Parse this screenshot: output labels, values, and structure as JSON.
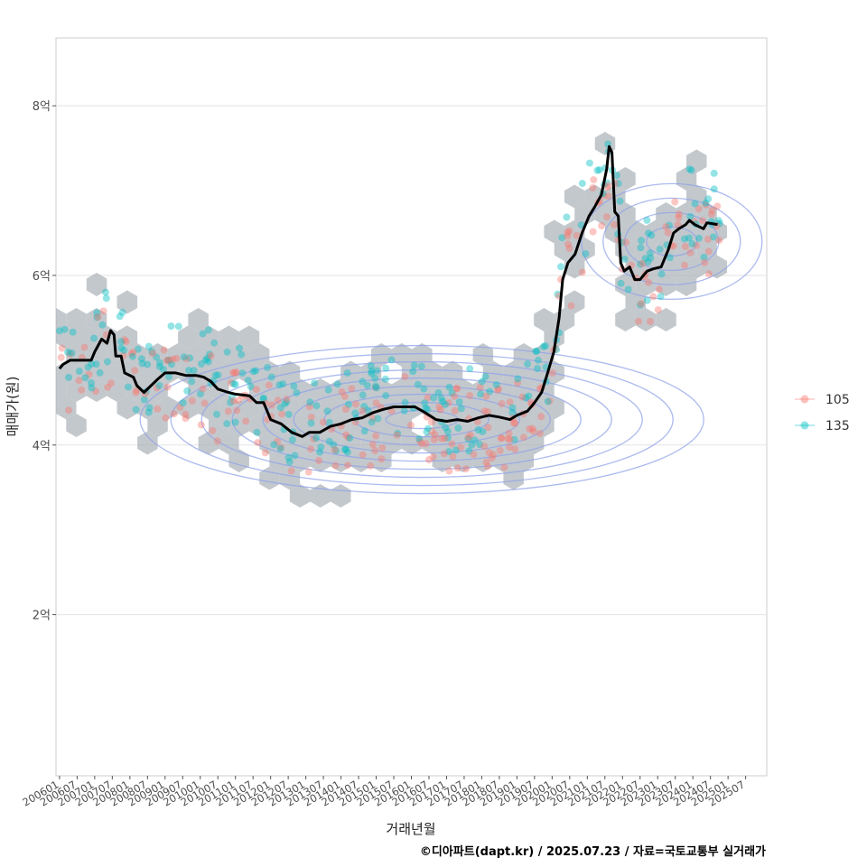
{
  "chart_data": {
    "type": "scatter",
    "xlabel": "거래년월",
    "ylabel": "매매가(원)",
    "caption": "©디아파트(dapt.kr) / 2025.07.23 / 자료=국토교통부 실거래가",
    "ylim": [
      0.1,
      8.8
    ],
    "xlim": [
      2005.9,
      2026.1
    ],
    "y_ticks": [
      {
        "value": 2,
        "label": "2억"
      },
      {
        "value": 4,
        "label": "4억"
      },
      {
        "value": 6,
        "label": "6억"
      },
      {
        "value": 8,
        "label": "8억"
      }
    ],
    "x_ticks": [
      "200601",
      "200607",
      "200701",
      "200707",
      "200801",
      "200807",
      "200901",
      "200907",
      "201001",
      "201007",
      "201101",
      "201107",
      "201201",
      "201207",
      "201301",
      "201307",
      "201401",
      "201407",
      "201501",
      "201507",
      "201601",
      "201607",
      "201701",
      "201707",
      "201801",
      "201807",
      "201901",
      "201907",
      "202001",
      "202007",
      "202101",
      "202107",
      "202201",
      "202207",
      "202301",
      "202307",
      "202401",
      "202407",
      "202501",
      "202507"
    ],
    "legend": [
      {
        "name": "105",
        "color": "#F8766D"
      },
      {
        "name": "135",
        "color": "#00BFC4"
      }
    ],
    "colors": {
      "hex_fill": "#aab1b8",
      "density_line": "#8fa3e8",
      "trend_line": "#000000",
      "grid": "#e3e3e3"
    },
    "trend_line": [
      [
        2006.0,
        4.9
      ],
      [
        2006.1,
        4.95
      ],
      [
        2006.3,
        5.0
      ],
      [
        2006.6,
        5.0
      ],
      [
        2006.9,
        5.0
      ],
      [
        2007.0,
        5.1
      ],
      [
        2007.2,
        5.25
      ],
      [
        2007.35,
        5.2
      ],
      [
        2007.45,
        5.35
      ],
      [
        2007.55,
        5.3
      ],
      [
        2007.6,
        5.05
      ],
      [
        2007.75,
        5.05
      ],
      [
        2007.85,
        4.85
      ],
      [
        2008.1,
        4.8
      ],
      [
        2008.2,
        4.7
      ],
      [
        2008.4,
        4.62
      ],
      [
        2008.6,
        4.7
      ],
      [
        2008.8,
        4.78
      ],
      [
        2009.0,
        4.85
      ],
      [
        2009.3,
        4.85
      ],
      [
        2009.6,
        4.82
      ],
      [
        2009.9,
        4.82
      ],
      [
        2010.1,
        4.8
      ],
      [
        2010.3,
        4.75
      ],
      [
        2010.5,
        4.66
      ],
      [
        2010.8,
        4.62
      ],
      [
        2011.0,
        4.6
      ],
      [
        2011.4,
        4.58
      ],
      [
        2011.6,
        4.5
      ],
      [
        2011.8,
        4.5
      ],
      [
        2012.0,
        4.3
      ],
      [
        2012.3,
        4.25
      ],
      [
        2012.6,
        4.15
      ],
      [
        2012.9,
        4.1
      ],
      [
        2013.1,
        4.15
      ],
      [
        2013.4,
        4.15
      ],
      [
        2013.7,
        4.22
      ],
      [
        2014.0,
        4.25
      ],
      [
        2014.3,
        4.3
      ],
      [
        2014.6,
        4.32
      ],
      [
        2014.9,
        4.38
      ],
      [
        2015.2,
        4.42
      ],
      [
        2015.5,
        4.45
      ],
      [
        2015.8,
        4.45
      ],
      [
        2016.1,
        4.45
      ],
      [
        2016.4,
        4.38
      ],
      [
        2016.7,
        4.3
      ],
      [
        2017.0,
        4.28
      ],
      [
        2017.3,
        4.3
      ],
      [
        2017.6,
        4.28
      ],
      [
        2017.9,
        4.32
      ],
      [
        2018.2,
        4.35
      ],
      [
        2018.5,
        4.33
      ],
      [
        2018.8,
        4.3
      ],
      [
        2019.0,
        4.35
      ],
      [
        2019.3,
        4.4
      ],
      [
        2019.5,
        4.5
      ],
      [
        2019.7,
        4.62
      ],
      [
        2019.85,
        4.82
      ],
      [
        2020.05,
        5.1
      ],
      [
        2020.2,
        5.5
      ],
      [
        2020.3,
        5.95
      ],
      [
        2020.45,
        6.15
      ],
      [
        2020.65,
        6.25
      ],
      [
        2020.85,
        6.5
      ],
      [
        2021.05,
        6.7
      ],
      [
        2021.2,
        6.8
      ],
      [
        2021.4,
        6.95
      ],
      [
        2021.55,
        7.25
      ],
      [
        2021.62,
        7.52
      ],
      [
        2021.7,
        7.45
      ],
      [
        2021.78,
        6.75
      ],
      [
        2021.88,
        6.7
      ],
      [
        2021.95,
        6.15
      ],
      [
        2022.05,
        6.05
      ],
      [
        2022.2,
        6.1
      ],
      [
        2022.35,
        5.95
      ],
      [
        2022.5,
        5.95
      ],
      [
        2022.7,
        6.05
      ],
      [
        2022.9,
        6.08
      ],
      [
        2023.1,
        6.1
      ],
      [
        2023.3,
        6.3
      ],
      [
        2023.45,
        6.5
      ],
      [
        2023.6,
        6.55
      ],
      [
        2023.8,
        6.6
      ],
      [
        2023.9,
        6.65
      ],
      [
        2024.05,
        6.6
      ],
      [
        2024.3,
        6.55
      ],
      [
        2024.4,
        6.62
      ],
      [
        2024.7,
        6.6
      ]
    ]
  }
}
